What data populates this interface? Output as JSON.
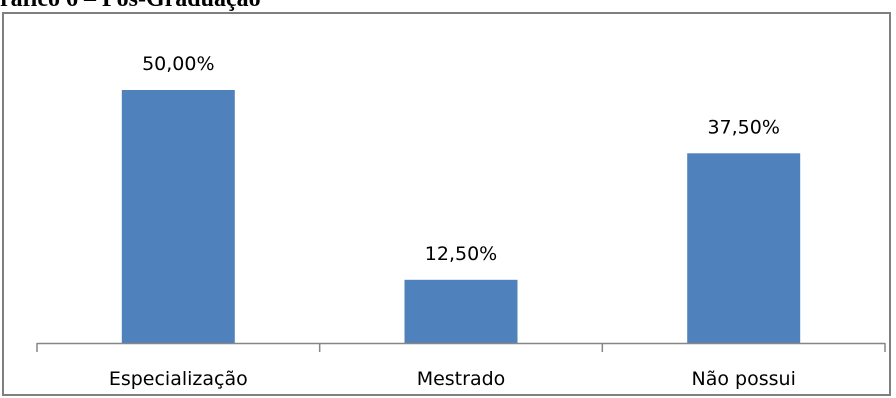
{
  "figure": {
    "caption": "ráfico 6 – Pós-Graduação"
  },
  "chart_data": {
    "type": "bar",
    "title": "",
    "xlabel": "",
    "ylabel": "",
    "categories": [
      "Especialização",
      "Mestrado",
      "Não possui"
    ],
    "values": [
      50.0,
      12.5,
      37.5
    ],
    "data_labels": [
      "50,00%",
      "12,50%",
      "37,50%"
    ],
    "unit": "%",
    "ylim": [
      0,
      55
    ],
    "grid": false,
    "legend": "none",
    "bar_color": "#4f81bd",
    "axis_color": "#868686"
  }
}
